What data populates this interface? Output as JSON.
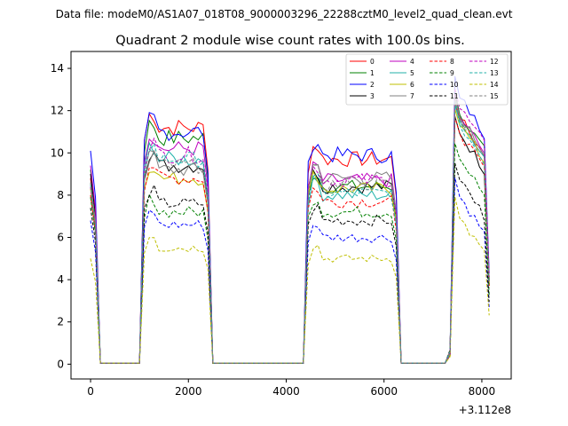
{
  "chart_data": {
    "type": "line",
    "suptitle": "Data file: modeM0/AS1A07_018T08_9000003296_22288cztM0_level2_quad_clean.evt",
    "title": "Quadrant 2 module wise count rates with 100.0s bins.",
    "xlabel": "",
    "ylabel": "",
    "x_offset_label": "+3.112e8",
    "xlim": [
      -400,
      8600
    ],
    "ylim": [
      -0.7,
      14.8
    ],
    "xticks": [
      0,
      2000,
      4000,
      6000,
      8000
    ],
    "yticks": [
      0,
      2,
      4,
      6,
      8,
      10,
      12,
      14
    ],
    "legend_position": "top-right",
    "segments": [
      [
        0,
        100
      ],
      [
        1100,
        2400
      ],
      [
        4450,
        6250
      ],
      [
        7350,
        8150
      ]
    ],
    "gap_x": [
      200,
      1000,
      2500,
      4350,
      6350,
      7250
    ],
    "series": [
      {
        "name": "0",
        "color": "#ff0000",
        "dash": "solid",
        "start": 8.8,
        "levels": [
          11.2,
          9.7,
          11.3
        ]
      },
      {
        "name": "1",
        "color": "#008000",
        "dash": "solid",
        "start": 9.2,
        "levels": [
          10.7,
          8.4,
          11.5
        ]
      },
      {
        "name": "2",
        "color": "#0000ff",
        "dash": "solid",
        "start": 10.1,
        "levels": [
          11.0,
          9.9,
          12.3
        ]
      },
      {
        "name": "3",
        "color": "#000000",
        "dash": "solid",
        "start": 9.0,
        "levels": [
          9.4,
          8.4,
          10.6
        ]
      },
      {
        "name": "4",
        "color": "#bf00bf",
        "dash": "solid",
        "start": 9.4,
        "levels": [
          10.2,
          8.7,
          11.4
        ]
      },
      {
        "name": "5",
        "color": "#20b2aa",
        "dash": "solid",
        "start": 8.4,
        "levels": [
          9.7,
          8.0,
          11.2
        ]
      },
      {
        "name": "6",
        "color": "#bfbf00",
        "dash": "solid",
        "start": 8.3,
        "levels": [
          8.8,
          8.3,
          11.0
        ]
      },
      {
        "name": "7",
        "color": "#808080",
        "dash": "solid",
        "start": 8.6,
        "levels": [
          9.2,
          8.8,
          11.4
        ]
      },
      {
        "name": "8",
        "color": "#ff0000",
        "dash": "dashed",
        "start": 8.0,
        "levels": [
          8.8,
          7.7,
          10.6
        ]
      },
      {
        "name": "9",
        "color": "#008000",
        "dash": "dashed",
        "start": 7.9,
        "levels": [
          7.2,
          7.2,
          9.4
        ]
      },
      {
        "name": "10",
        "color": "#0000ff",
        "dash": "dashed",
        "start": 6.8,
        "levels": [
          6.6,
          6.0,
          7.6
        ]
      },
      {
        "name": "11",
        "color": "#000000",
        "dash": "dashed",
        "start": 7.4,
        "levels": [
          7.6,
          6.8,
          8.4
        ]
      },
      {
        "name": "12",
        "color": "#bf00bf",
        "dash": "dashed",
        "start": 8.4,
        "levels": [
          9.9,
          8.7,
          11.8
        ]
      },
      {
        "name": "13",
        "color": "#20b2aa",
        "dash": "dashed",
        "start": 8.5,
        "levels": [
          9.7,
          8.1,
          11.0
        ]
      },
      {
        "name": "14",
        "color": "#bfbf00",
        "dash": "dashed",
        "start": 5.0,
        "levels": [
          5.5,
          5.0,
          6.6
        ]
      },
      {
        "name": "15",
        "color": "#808080",
        "dash": "dashed",
        "start": 8.6,
        "levels": [
          9.4,
          8.5,
          11.3
        ]
      }
    ]
  }
}
